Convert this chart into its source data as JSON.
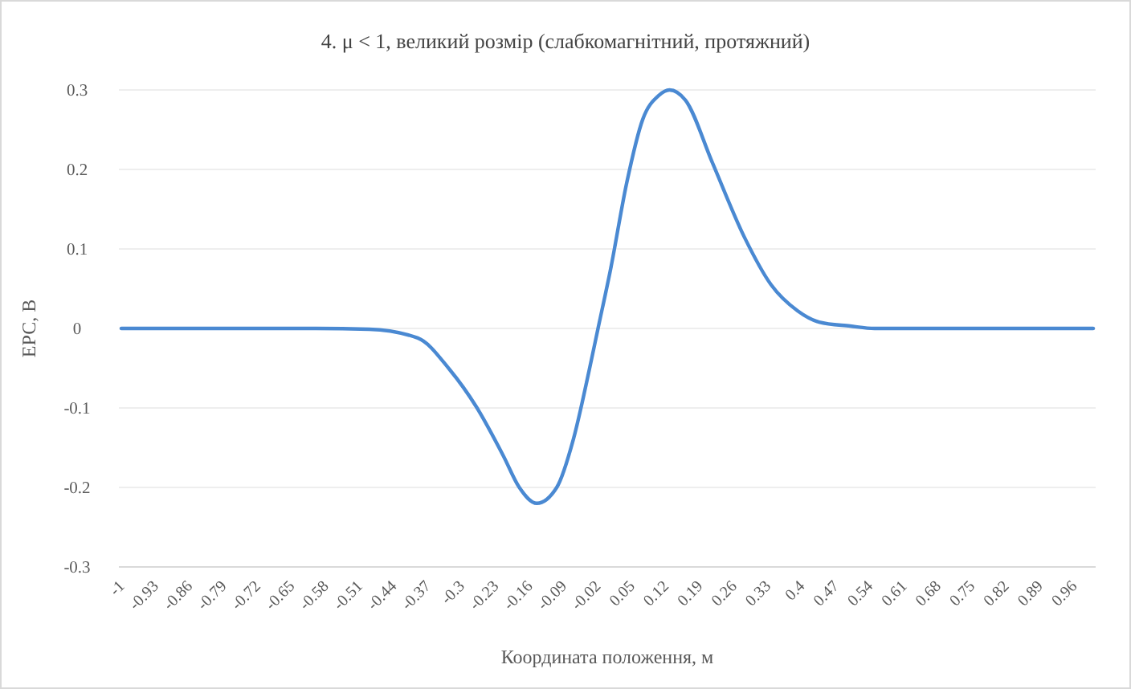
{
  "chart_data": {
    "type": "line",
    "title": "4. μ < 1, великий розмір (слабкомагнітний, протяжний)",
    "xlabel": "Координата положення, м",
    "ylabel": "ЕРС, В",
    "x": [
      -1,
      -0.8,
      -0.6,
      -0.49,
      -0.39,
      -0.324,
      -0.269,
      -0.214,
      -0.181,
      -0.145,
      -0.104,
      -0.07,
      -0.037,
      -0.019,
      0.007,
      0.04,
      0.073,
      0.106,
      0.128,
      0.161,
      0.216,
      0.282,
      0.337,
      0.392,
      0.436,
      0.5,
      0.55,
      0.7,
      0.85,
      1
    ],
    "series": [
      {
        "color": "#4a89d2",
        "values": [
          0,
          0,
          0,
          -0.001,
          -0.012,
          -0.052,
          -0.099,
          -0.16,
          -0.2,
          -0.22,
          -0.2,
          -0.14,
          -0.052,
          0,
          0.075,
          0.183,
          0.263,
          0.293,
          0.3,
          0.287,
          0.209,
          0.115,
          0.055,
          0.022,
          0.008,
          0.003,
          0,
          0,
          0,
          0
        ]
      }
    ],
    "xlim": [
      -1.005,
      1.005
    ],
    "xticks": [
      -1,
      -0.93,
      -0.86,
      -0.79,
      -0.72,
      -0.65,
      -0.58,
      -0.51,
      -0.44,
      -0.37,
      -0.3,
      -0.23,
      -0.16,
      -0.09,
      -0.02,
      0.05,
      0.12,
      0.19,
      0.26,
      0.33,
      0.4,
      0.47,
      0.54,
      0.61,
      0.68,
      0.75,
      0.82,
      0.89,
      0.96
    ],
    "ylim": [
      -0.3,
      0.3
    ],
    "yticks": [
      -0.3,
      -0.2,
      -0.1,
      0,
      0.1,
      0.2,
      0.3
    ],
    "grid": "y",
    "marker": "none",
    "line_style": "solid"
  }
}
